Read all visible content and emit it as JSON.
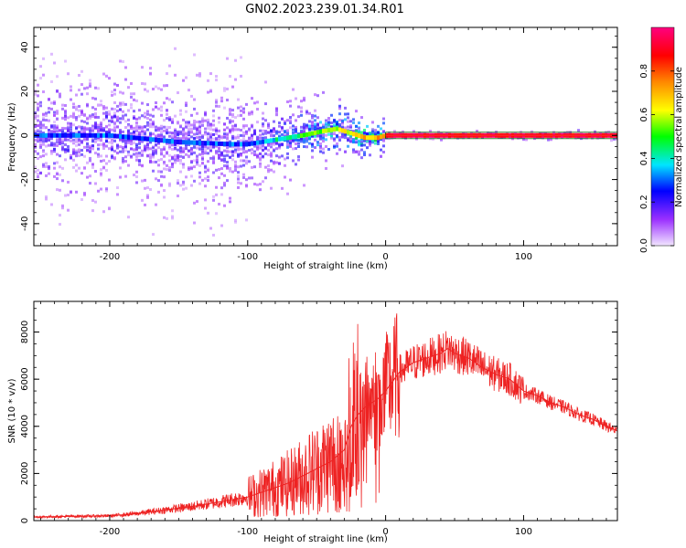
{
  "title": "GN02.2023.239.01.34.R01",
  "chart_data": [
    {
      "type": "heatmap",
      "xlabel": "Height of straight line (km)",
      "ylabel": "Frequency (Hz)",
      "xlim": [
        -255,
        168
      ],
      "ylim": [
        -50,
        49
      ],
      "xticks": [
        -200,
        -100,
        0,
        100
      ],
      "yticks": [
        -40,
        -20,
        0,
        20,
        40
      ],
      "xtick_labels": [
        "-200",
        "-100",
        "0",
        "100"
      ],
      "ytick_labels": [
        "-40",
        "-20",
        "0",
        "20",
        "40"
      ],
      "colorbar": {
        "label": "Normalized spectral amplitude",
        "range": [
          0,
          1
        ],
        "ticks": [
          0.0,
          0.2,
          0.4,
          0.6,
          0.8
        ],
        "tick_labels": [
          "0.0",
          "0.2",
          "0.4",
          "0.6",
          "0.8"
        ],
        "colors": [
          "#f2e6ff",
          "#9b30ff",
          "#0000ff",
          "#00e5ff",
          "#00ff00",
          "#ffff00",
          "#ff8800",
          "#ff0000",
          "#ff0080"
        ]
      },
      "ridge": {
        "x": [
          -255,
          -200,
          -150,
          -110,
          -100,
          -80,
          -60,
          -45,
          -35,
          -25,
          -15,
          -5,
          0,
          50,
          85,
          100,
          168
        ],
        "y": [
          0,
          0,
          -3,
          -4,
          -4,
          -2,
          0,
          2,
          3,
          1,
          -1,
          -1,
          0,
          0,
          0,
          0,
          0
        ]
      }
    },
    {
      "type": "line",
      "xlabel": "Height of straight line (km)",
      "ylabel": "SNR (10 * v/v)",
      "xlim": [
        -255,
        168
      ],
      "ylim": [
        0,
        9300
      ],
      "xticks": [
        -200,
        -100,
        0,
        100
      ],
      "yticks": [
        0,
        2000,
        4000,
        6000,
        8000
      ],
      "xtick_labels": [
        "-200",
        "-100",
        "0",
        "100"
      ],
      "ytick_labels": [
        "0",
        "2000",
        "4000",
        "6000",
        "8000"
      ],
      "series": [
        {
          "color": "#ee2222",
          "x": [
            -255,
            -230,
            -200,
            -180,
            -160,
            -140,
            -120,
            -100,
            -90,
            -80,
            -70,
            -60,
            -50,
            -40,
            -30,
            -25,
            -20,
            -15,
            -10,
            -5,
            0,
            10,
            20,
            30,
            40,
            45,
            50,
            60,
            70,
            80,
            90,
            100,
            110,
            120,
            130,
            140,
            150,
            160,
            168
          ],
          "y": [
            150,
            180,
            200,
            300,
            450,
            600,
            800,
            1000,
            1200,
            1400,
            1600,
            1900,
            2200,
            2500,
            3000,
            4000,
            4500,
            4800,
            5000,
            5200,
            5500,
            6300,
            6700,
            6900,
            7100,
            7300,
            7100,
            6900,
            6500,
            6200,
            6000,
            5500,
            5300,
            5000,
            4800,
            4500,
            4300,
            4000,
            3800
          ]
        }
      ]
    }
  ]
}
